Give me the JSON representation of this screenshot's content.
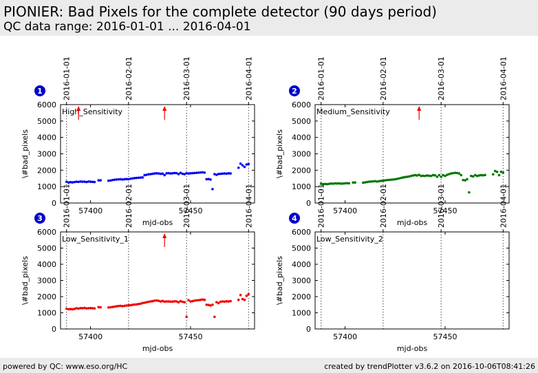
{
  "header": {
    "title": "PIONIER: Bad Pixels for the complete detector (90 days period)",
    "subtitle": "QC data range: 2016-01-01 ... 2016-04-01"
  },
  "footer": {
    "left": "powered by QC: www.eso.org/HC",
    "right": "created by trendPlotter v3.6.2 on 2016-10-06T08:41:26"
  },
  "colors": {
    "blue": "#0000ee",
    "green": "#007700",
    "red": "#ee0000",
    "badge": "#0000cc"
  },
  "chart_data": [
    {
      "type": "scatter",
      "badge": "1",
      "title": "High_Sensitivity",
      "xlabel": "mjd-obs",
      "ylabel": "\\#bad_pixels",
      "xlim": [
        57385,
        57482
      ],
      "ylim": [
        0,
        6000
      ],
      "xticks": [
        57400,
        57450
      ],
      "yticks": [
        0,
        1000,
        2000,
        3000,
        4000,
        5000,
        6000
      ],
      "date_marks": [
        {
          "x": 57388,
          "label": "2016-01-01"
        },
        {
          "x": 57419,
          "label": "2016-02-01"
        },
        {
          "x": 57448,
          "label": "2016-03-01"
        },
        {
          "x": 57479,
          "label": "2016-04-01"
        }
      ],
      "arrows": [
        57394,
        57437
      ],
      "color": "blue",
      "x": [
        57388,
        57389,
        57390,
        57391,
        57392,
        57393,
        57394,
        57395,
        57396,
        57397,
        57398,
        57399,
        57400,
        57401,
        57402,
        57404,
        57405,
        57409,
        57410,
        57411,
        57412,
        57413,
        57414,
        57415,
        57416,
        57417,
        57418,
        57419,
        57420,
        57421,
        57422,
        57423,
        57424,
        57425,
        57426,
        57427,
        57428,
        57429,
        57430,
        57431,
        57432,
        57433,
        57434,
        57435,
        57436,
        57437,
        57438,
        57439,
        57440,
        57441,
        57442,
        57443,
        57444,
        57445,
        57446,
        57447,
        57448,
        57449,
        57450,
        57451,
        57452,
        57453,
        57454,
        57455,
        57456,
        57457,
        57458,
        57459,
        57460,
        57461,
        57462,
        57463,
        57464,
        57465,
        57466,
        57467,
        57468,
        57469,
        57470,
        57474,
        57475,
        57476,
        57477,
        57478,
        57479
      ],
      "y": [
        1300,
        1250,
        1270,
        1260,
        1280,
        1300,
        1290,
        1310,
        1300,
        1300,
        1280,
        1310,
        1300,
        1290,
        1280,
        1380,
        1380,
        1360,
        1370,
        1400,
        1420,
        1430,
        1440,
        1450,
        1430,
        1450,
        1460,
        1450,
        1480,
        1500,
        1520,
        1530,
        1540,
        1550,
        1560,
        1700,
        1720,
        1750,
        1760,
        1780,
        1800,
        1810,
        1800,
        1780,
        1790,
        1700,
        1810,
        1820,
        1800,
        1810,
        1830,
        1820,
        1760,
        1840,
        1780,
        1760,
        1810,
        1800,
        1810,
        1820,
        1830,
        1840,
        1850,
        1860,
        1870,
        1850,
        1450,
        1460,
        1430,
        850,
        1760,
        1720,
        1770,
        1780,
        1790,
        1800,
        1790,
        1810,
        1800,
        2150,
        2400,
        2300,
        2200,
        2350,
        2380
      ]
    },
    {
      "type": "scatter",
      "badge": "2",
      "title": "Medium_Sensitivity",
      "xlabel": "mjd-obs",
      "ylabel": "\\#bad_pixels",
      "xlim": [
        57385,
        57482
      ],
      "ylim": [
        0,
        6000
      ],
      "xticks": [
        57400,
        57450
      ],
      "yticks": [
        0,
        1000,
        2000,
        3000,
        4000,
        5000,
        6000
      ],
      "date_marks": [
        {
          "x": 57388,
          "label": "2016-01-01"
        },
        {
          "x": 57419,
          "label": "2016-02-01"
        },
        {
          "x": 57448,
          "label": "2016-03-01"
        },
        {
          "x": 57479,
          "label": "2016-04-01"
        }
      ],
      "arrows": [
        57437
      ],
      "color": "green",
      "x": [
        57388,
        57389,
        57390,
        57391,
        57392,
        57393,
        57394,
        57395,
        57396,
        57397,
        57398,
        57399,
        57400,
        57401,
        57402,
        57404,
        57405,
        57409,
        57410,
        57411,
        57412,
        57413,
        57414,
        57415,
        57416,
        57417,
        57418,
        57419,
        57420,
        57421,
        57422,
        57423,
        57424,
        57425,
        57426,
        57427,
        57428,
        57429,
        57430,
        57431,
        57432,
        57433,
        57434,
        57435,
        57436,
        57437,
        57438,
        57439,
        57440,
        57441,
        57442,
        57443,
        57444,
        57445,
        57446,
        57447,
        57448,
        57449,
        57450,
        57451,
        57452,
        57453,
        57454,
        57455,
        57456,
        57457,
        57458,
        57459,
        57460,
        57461,
        57462,
        57463,
        57464,
        57465,
        57466,
        57467,
        57468,
        57469,
        57470,
        57474,
        57475,
        57476,
        57477,
        57478,
        57479
      ],
      "y": [
        1180,
        1150,
        1160,
        1150,
        1170,
        1190,
        1180,
        1200,
        1190,
        1200,
        1180,
        1190,
        1200,
        1210,
        1200,
        1250,
        1250,
        1240,
        1260,
        1280,
        1300,
        1310,
        1320,
        1330,
        1310,
        1330,
        1350,
        1360,
        1380,
        1400,
        1410,
        1420,
        1430,
        1450,
        1470,
        1500,
        1530,
        1560,
        1580,
        1600,
        1620,
        1650,
        1680,
        1700,
        1680,
        1720,
        1650,
        1660,
        1650,
        1680,
        1660,
        1650,
        1700,
        1690,
        1600,
        1700,
        1600,
        1700,
        1650,
        1720,
        1760,
        1800,
        1820,
        1840,
        1830,
        1800,
        1700,
        1400,
        1380,
        1450,
        650,
        1650,
        1620,
        1700,
        1650,
        1680,
        1700,
        1690,
        1710,
        1750,
        1950,
        1900,
        1700,
        1900,
        1850
      ]
    },
    {
      "type": "scatter",
      "badge": "3",
      "title": "Low_Sensitivity_1",
      "xlabel": "mjd-obs",
      "ylabel": "\\#bad_pixels",
      "xlim": [
        57385,
        57482
      ],
      "ylim": [
        0,
        6000
      ],
      "xticks": [
        57400,
        57450
      ],
      "yticks": [
        0,
        1000,
        2000,
        3000,
        4000,
        5000,
        6000
      ],
      "date_marks": [
        {
          "x": 57388,
          "label": "2016-01-01"
        },
        {
          "x": 57419,
          "label": "2016-02-01"
        },
        {
          "x": 57448,
          "label": "2016-03-01"
        },
        {
          "x": 57479,
          "label": "2016-04-01"
        }
      ],
      "arrows": [
        57437
      ],
      "color": "red",
      "x": [
        57388,
        57389,
        57390,
        57391,
        57392,
        57393,
        57394,
        57395,
        57396,
        57397,
        57398,
        57399,
        57400,
        57401,
        57402,
        57404,
        57405,
        57409,
        57410,
        57411,
        57412,
        57413,
        57414,
        57415,
        57416,
        57417,
        57418,
        57419,
        57420,
        57421,
        57422,
        57423,
        57424,
        57425,
        57426,
        57427,
        57428,
        57429,
        57430,
        57431,
        57432,
        57433,
        57434,
        57435,
        57436,
        57437,
        57438,
        57439,
        57440,
        57441,
        57442,
        57443,
        57444,
        57445,
        57446,
        57447,
        57448,
        57449,
        57450,
        57451,
        57452,
        57453,
        57454,
        57455,
        57456,
        57457,
        57458,
        57459,
        57460,
        57461,
        57462,
        57463,
        57464,
        57465,
        57466,
        57467,
        57468,
        57469,
        57470,
        57474,
        57475,
        57476,
        57477,
        57478,
        57479
      ],
      "y": [
        1250,
        1220,
        1230,
        1220,
        1240,
        1280,
        1260,
        1290,
        1280,
        1300,
        1270,
        1280,
        1290,
        1280,
        1270,
        1350,
        1340,
        1330,
        1340,
        1360,
        1380,
        1400,
        1420,
        1430,
        1410,
        1430,
        1450,
        1460,
        1470,
        1490,
        1510,
        1520,
        1540,
        1560,
        1600,
        1620,
        1650,
        1680,
        1700,
        1720,
        1750,
        1760,
        1740,
        1700,
        1730,
        1690,
        1700,
        1700,
        1690,
        1690,
        1710,
        1700,
        1650,
        1720,
        1680,
        1650,
        750,
        1780,
        1700,
        1720,
        1750,
        1770,
        1780,
        1800,
        1820,
        1800,
        1500,
        1480,
        1450,
        1500,
        750,
        1650,
        1600,
        1680,
        1700,
        1690,
        1710,
        1700,
        1720,
        1800,
        2100,
        1850,
        1800,
        2050,
        2150
      ]
    },
    {
      "type": "scatter",
      "badge": "4",
      "title": "Low_Sensitivity_2",
      "xlabel": "mjd-obs",
      "ylabel": "\\#bad_pixels",
      "xlim": [
        57385,
        57482
      ],
      "ylim": [
        0,
        6000
      ],
      "xticks": [
        57400,
        57450
      ],
      "yticks": [
        0,
        1000,
        2000,
        3000,
        4000,
        5000,
        6000
      ],
      "date_marks": [
        {
          "x": 57388,
          "label": "2016-01-01"
        },
        {
          "x": 57419,
          "label": "2016-02-01"
        },
        {
          "x": 57448,
          "label": "2016-03-01"
        },
        {
          "x": 57479,
          "label": "2016-04-01"
        }
      ],
      "arrows": [],
      "color": "red",
      "x": [],
      "y": []
    }
  ]
}
